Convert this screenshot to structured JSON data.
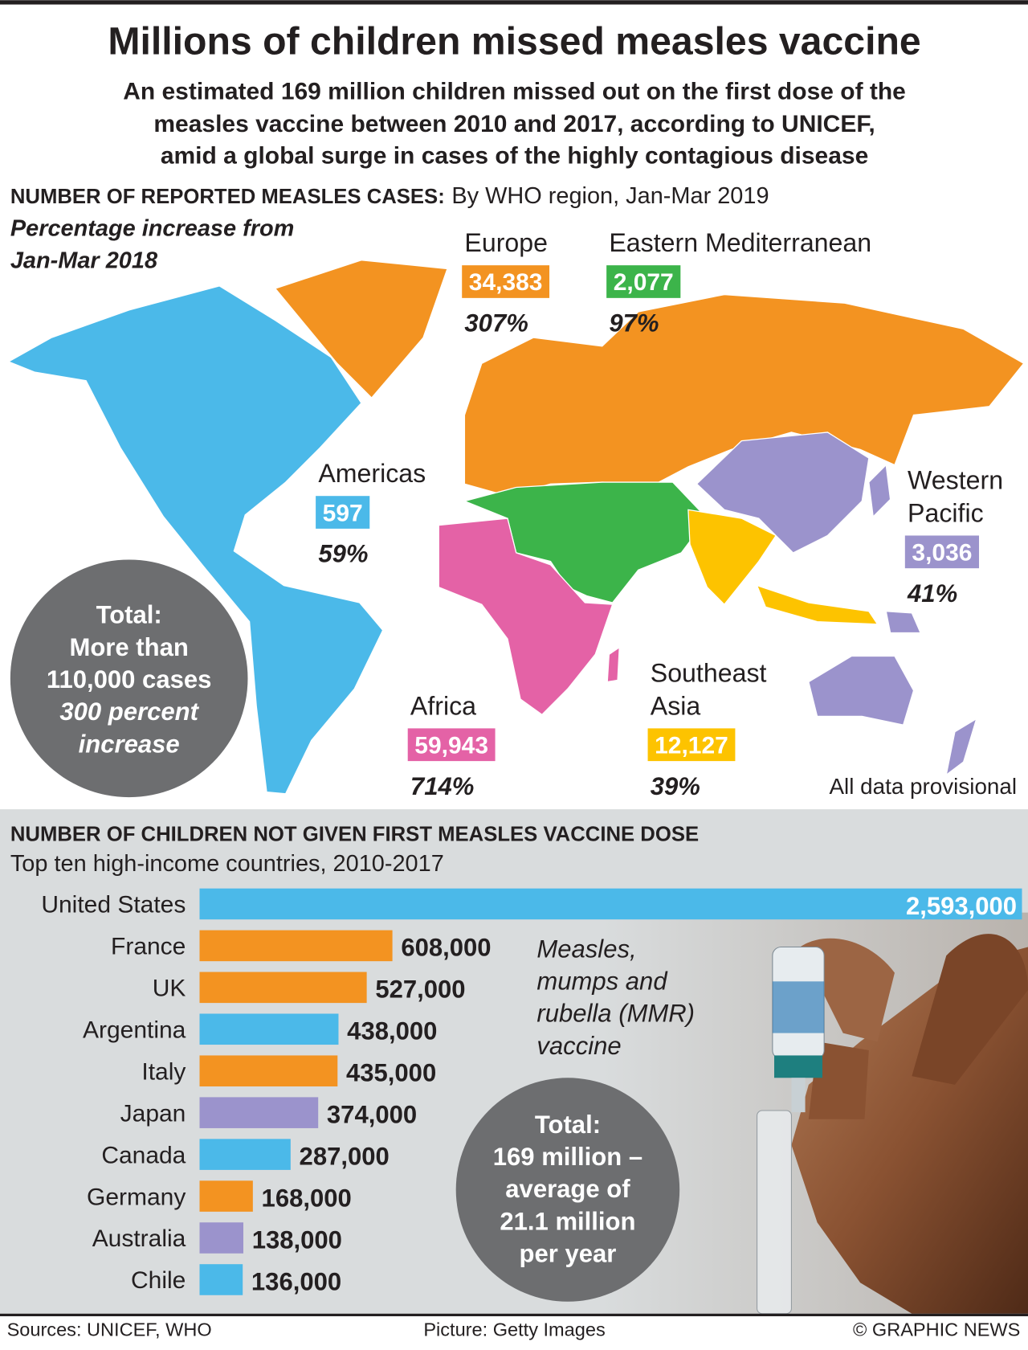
{
  "header": {
    "title": "Millions of children missed measles vaccine",
    "subtitle_lines": [
      "An estimated 169 million children missed out on the first dose of the",
      "measles vaccine between 2010 and 2017, according to UNICEF,",
      "amid a global surge in cases of the highly contagious disease"
    ]
  },
  "map": {
    "heading": "NUMBER OF REPORTED MEASLES CASES:",
    "heading_detail": "By WHO region, Jan-Mar 2019",
    "increase_note_lines": [
      "Percentage increase from",
      "Jan-Mar 2018"
    ],
    "regions": [
      {
        "name_lines": [
          "Europe"
        ],
        "cases": "34,383",
        "increase": "307%",
        "color": "#f39321"
      },
      {
        "name_lines": [
          "Eastern Mediterranean"
        ],
        "cases": "2,077",
        "increase": "97%",
        "color": "#3cb44a"
      },
      {
        "name_lines": [
          "Americas"
        ],
        "cases": "597",
        "increase": "59%",
        "color": "#4bb9e9"
      },
      {
        "name_lines": [
          "Western",
          "Pacific"
        ],
        "cases": "3,036",
        "increase": "41%",
        "color": "#9b93cc"
      },
      {
        "name_lines": [
          "Africa"
        ],
        "cases": "59,943",
        "increase": "714%",
        "color": "#e462a6"
      },
      {
        "name_lines": [
          "Southeast",
          "Asia"
        ],
        "cases": "12,127",
        "increase": "39%",
        "color": "#fdc300"
      }
    ],
    "total_lines": [
      "Total:",
      "More than",
      "110,000 cases",
      "300 percent",
      "increase"
    ],
    "note": "All data provisional"
  },
  "chart_data": {
    "type": "bar",
    "title": "NUMBER OF CHILDREN NOT GIVEN FIRST MEASLES VACCINE DOSE",
    "subtitle": "Top ten high-income countries, 2010-2017",
    "categories": [
      "United States",
      "France",
      "UK",
      "Argentina",
      "Italy",
      "Japan",
      "Canada",
      "Germany",
      "Australia",
      "Chile"
    ],
    "values": [
      2593000,
      608000,
      527000,
      438000,
      435000,
      374000,
      287000,
      168000,
      138000,
      136000
    ],
    "value_labels": [
      "2,593,000",
      "608,000",
      "527,000",
      "438,000",
      "435,000",
      "374,000",
      "287,000",
      "168,000",
      "138,000",
      "136,000"
    ],
    "colors": [
      "#4bb9e9",
      "#f39321",
      "#f39321",
      "#4bb9e9",
      "#f39321",
      "#9b93cc",
      "#4bb9e9",
      "#f39321",
      "#9b93cc",
      "#4bb9e9"
    ],
    "caption_lines": [
      "Measles,",
      "mumps and",
      "rubella (MMR)",
      "vaccine"
    ],
    "total_lines": [
      "Total:",
      "169 million –",
      "average of",
      "21.1 million",
      "per year"
    ]
  },
  "footer": {
    "sources": "Sources: UNICEF, WHO",
    "picture": "Picture: Getty Images",
    "credit": "© GRAPHIC NEWS"
  }
}
